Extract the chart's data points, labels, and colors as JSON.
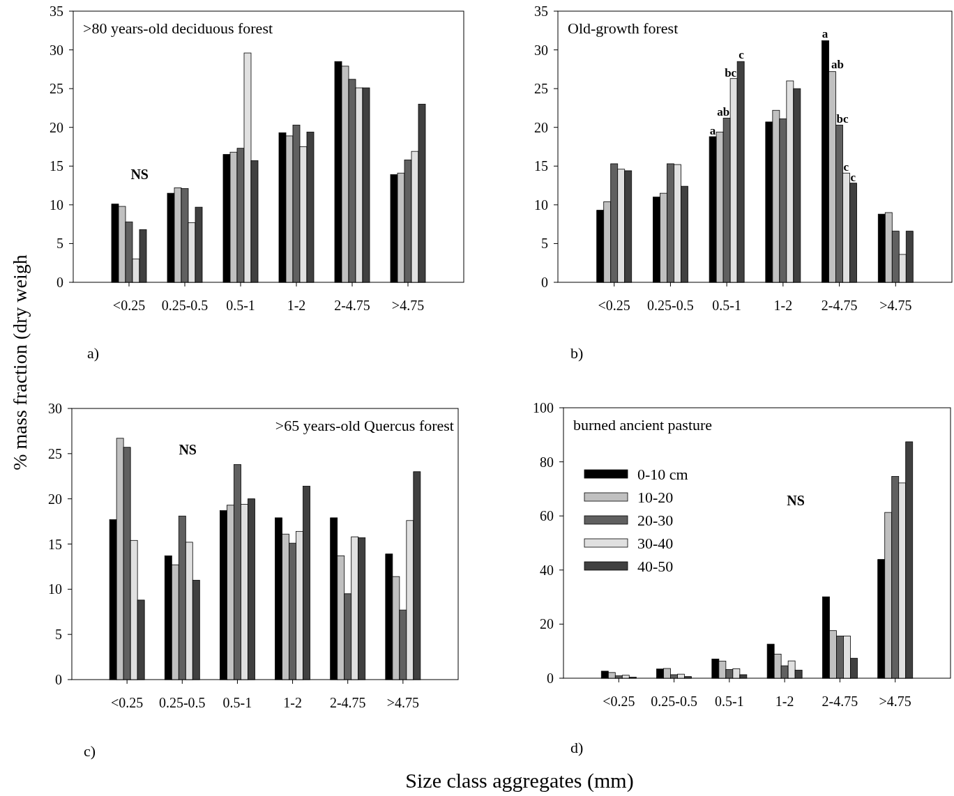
{
  "chart_data": [
    {
      "type": "bar",
      "title": ">80 years-old deciduous forest",
      "ylabel": "% mass fraction (dry weigh",
      "categories": [
        "<0.25",
        "0.25-0.5",
        "0.5-1",
        "1-2",
        "2-4.75",
        ">4.75"
      ],
      "ylim": [
        0,
        35
      ],
      "yticks": [
        0,
        5,
        10,
        15,
        20,
        25,
        30,
        35
      ],
      "legend": false,
      "annotations": [
        "a)",
        "NS"
      ],
      "series": [
        {
          "color": "#000000",
          "values": [
            10.1,
            11.5,
            16.5,
            19.3,
            28.5,
            13.9
          ]
        },
        {
          "color": "#c0c0c0",
          "values": [
            9.8,
            12.2,
            16.8,
            18.9,
            27.9,
            14.1
          ]
        },
        {
          "color": "#606060",
          "values": [
            7.8,
            12.1,
            17.3,
            20.3,
            26.2,
            15.8
          ]
        },
        {
          "color": "#e0e0e0",
          "values": [
            3.0,
            7.7,
            29.6,
            17.5,
            25.1,
            16.9
          ]
        },
        {
          "color": "#404040",
          "values": [
            6.8,
            9.7,
            15.7,
            19.4,
            25.1,
            23.0
          ]
        }
      ]
    },
    {
      "type": "bar",
      "title": "Old-growth forest",
      "categories": [
        "<0.25",
        "0.25-0.5",
        "0.5-1",
        "1-2",
        "2-4.75",
        ">4.75"
      ],
      "ylim": [
        0,
        35
      ],
      "yticks": [
        0,
        5,
        10,
        15,
        20,
        25,
        30,
        35
      ],
      "legend": false,
      "annotations": [
        "b)",
        "c",
        "a",
        "ab",
        {
          "text": "a",
          "x": "0.5-1",
          "y": 18.8
        },
        {
          "text": "ab",
          "x": "0.5-1",
          "y": 21.2
        },
        {
          "text": "bc",
          "x": "0.5-1",
          "y": 26.3
        },
        {
          "text": "bc",
          "x": "2-4.75",
          "y": 20.3
        },
        {
          "text": "c",
          "x": "2-4.75",
          "y": 14.1
        },
        {
          "text": "c",
          "x": "2-4.75",
          "y": 12.8
        }
      ],
      "series": [
        {
          "color": "#000000",
          "values": [
            9.3,
            11.0,
            18.8,
            20.7,
            31.2,
            8.8
          ]
        },
        {
          "color": "#c0c0c0",
          "values": [
            10.4,
            11.5,
            19.4,
            22.2,
            27.2,
            9.0
          ]
        },
        {
          "color": "#606060",
          "values": [
            15.3,
            15.3,
            21.2,
            21.1,
            20.3,
            6.6
          ]
        },
        {
          "color": "#e0e0e0",
          "values": [
            14.6,
            15.2,
            26.3,
            26.0,
            14.1,
            3.6
          ]
        },
        {
          "color": "#404040",
          "values": [
            14.4,
            12.4,
            28.5,
            25.0,
            12.8,
            6.6
          ]
        }
      ]
    },
    {
      "type": "bar",
      "title": ">65 years-old Quercus forest",
      "categories": [
        "<0.25",
        "0.25-0.5",
        "0.5-1",
        "1-2",
        "2-4.75",
        ">4.75"
      ],
      "ylim": [
        0,
        30
      ],
      "yticks": [
        0,
        5,
        10,
        15,
        20,
        25,
        30
      ],
      "legend": false,
      "annotations": [
        "c)",
        "NS"
      ],
      "series": [
        {
          "color": "#000000",
          "values": [
            17.7,
            13.7,
            18.7,
            17.9,
            17.9,
            13.9
          ]
        },
        {
          "color": "#c0c0c0",
          "values": [
            26.7,
            12.7,
            19.3,
            16.1,
            13.7,
            11.4
          ]
        },
        {
          "color": "#606060",
          "values": [
            25.7,
            18.1,
            23.8,
            15.1,
            9.5,
            7.7
          ]
        },
        {
          "color": "#e0e0e0",
          "values": [
            15.4,
            15.2,
            19.4,
            16.4,
            15.8,
            17.6
          ]
        },
        {
          "color": "#404040",
          "values": [
            8.8,
            11.0,
            20.0,
            21.4,
            15.7,
            23.0
          ]
        }
      ]
    },
    {
      "type": "bar",
      "title": "burned ancient pasture",
      "xlabel": "Size class aggregates (mm)",
      "categories": [
        "<0.25",
        "0.25-0.5",
        "0.5-1",
        "1-2",
        "2-4.75",
        ">4.75"
      ],
      "ylim": [
        0,
        100
      ],
      "yticks": [
        0,
        20,
        40,
        60,
        80,
        100
      ],
      "legend": "top left",
      "annotations": [
        "d)",
        "NS"
      ],
      "series": [
        {
          "name": "0-10 cm",
          "color": "#000000",
          "values": [
            2.6,
            3.4,
            7.1,
            12.6,
            30.1,
            43.9
          ]
        },
        {
          "name": "10-20",
          "color": "#c0c0c0",
          "values": [
            2.1,
            3.6,
            6.3,
            8.9,
            17.6,
            61.3
          ]
        },
        {
          "name": "20-30",
          "color": "#606060",
          "values": [
            0.9,
            1.3,
            3.2,
            4.6,
            15.6,
            74.6
          ]
        },
        {
          "name": "30-40",
          "color": "#e0e0e0",
          "values": [
            1.1,
            1.5,
            3.5,
            6.4,
            15.6,
            72.2
          ]
        },
        {
          "name": "40-50",
          "color": "#404040",
          "values": [
            0.4,
            0.6,
            1.3,
            3.0,
            7.4,
            87.4
          ]
        }
      ]
    }
  ]
}
